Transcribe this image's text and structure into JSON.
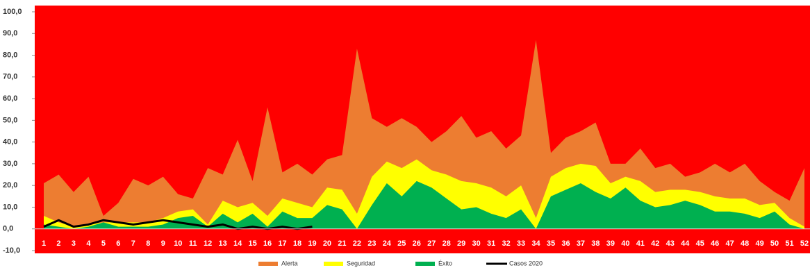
{
  "chart_data": {
    "type": "area",
    "background": "#ff0000",
    "categories": [
      "1",
      "2",
      "3",
      "4",
      "5",
      "6",
      "7",
      "8",
      "9",
      "10",
      "11",
      "12",
      "13",
      "14",
      "15",
      "16",
      "17",
      "18",
      "19",
      "20",
      "21",
      "22",
      "23",
      "24",
      "25",
      "26",
      "27",
      "28",
      "29",
      "30",
      "31",
      "32",
      "33",
      "34",
      "35",
      "36",
      "37",
      "38",
      "39",
      "40",
      "41",
      "42",
      "43",
      "44",
      "45",
      "46",
      "47",
      "48",
      "49",
      "50",
      "51",
      "52"
    ],
    "series": [
      {
        "name": "Alerta",
        "type": "area",
        "color": "#ed7d31",
        "values": [
          21,
          25,
          17,
          24,
          6,
          12,
          23,
          20,
          24,
          16,
          14,
          28,
          25,
          41,
          22,
          56,
          26,
          30,
          25,
          32,
          34,
          83,
          51,
          47,
          51,
          47,
          40,
          45,
          52,
          42,
          45,
          37,
          43,
          87,
          35,
          42,
          45,
          49,
          30,
          30,
          37,
          28,
          30,
          24,
          26,
          30,
          26,
          30,
          22,
          17,
          13,
          28
        ]
      },
      {
        "name": "Seguridad",
        "type": "area",
        "color": "#ffff00",
        "values": [
          6,
          3,
          1,
          2,
          3,
          3,
          3,
          3,
          5,
          8,
          9,
          2,
          13,
          10,
          12,
          6,
          14,
          12,
          10,
          19,
          18,
          7,
          24,
          31,
          28,
          32,
          27,
          25,
          22,
          21,
          19,
          15,
          20,
          5,
          24,
          28,
          30,
          29,
          21,
          24,
          22,
          17,
          18,
          18,
          17,
          15,
          14,
          14,
          11,
          12,
          5,
          1
        ]
      },
      {
        "name": "Éxito",
        "type": "area",
        "color": "#00b050",
        "values": [
          2,
          1,
          0,
          1,
          3,
          1,
          1,
          1,
          2,
          5,
          6,
          1,
          7,
          3,
          7,
          1,
          8,
          5,
          5,
          11,
          9,
          0,
          11,
          21,
          15,
          22,
          19,
          14,
          9,
          10,
          7,
          5,
          9,
          0,
          15,
          18,
          21,
          17,
          14,
          19,
          13,
          10,
          11,
          13,
          11,
          8,
          8,
          7,
          5,
          8,
          2,
          0
        ]
      },
      {
        "name": "Casos 2020",
        "type": "line",
        "color": "#000000",
        "values": [
          1,
          4,
          1,
          2,
          4,
          3,
          2,
          3,
          4,
          3,
          2,
          1,
          2,
          0,
          1,
          0,
          1,
          0,
          1,
          null,
          null,
          null,
          null,
          null,
          null,
          null,
          null,
          null,
          null,
          null,
          null,
          null,
          null,
          null,
          null,
          null,
          null,
          null,
          null,
          null,
          null,
          null,
          null,
          null,
          null,
          null,
          null,
          null,
          null,
          null,
          null,
          null
        ]
      }
    ],
    "ylim": [
      -10,
      100
    ],
    "yticks": [
      {
        "value": 100,
        "label": "100,0"
      },
      {
        "value": 90,
        "label": "90,0"
      },
      {
        "value": 80,
        "label": "80,0"
      },
      {
        "value": 70,
        "label": "70,0"
      },
      {
        "value": 60,
        "label": "60,0"
      },
      {
        "value": 50,
        "label": "50,0"
      },
      {
        "value": 40,
        "label": "40,0"
      },
      {
        "value": 30,
        "label": "30,0"
      },
      {
        "value": 20,
        "label": "20,0"
      },
      {
        "value": 10,
        "label": "10,0"
      },
      {
        "value": 0,
        "label": "0,0"
      },
      {
        "value": -10,
        "label": "-10,0"
      }
    ],
    "grid": false
  }
}
